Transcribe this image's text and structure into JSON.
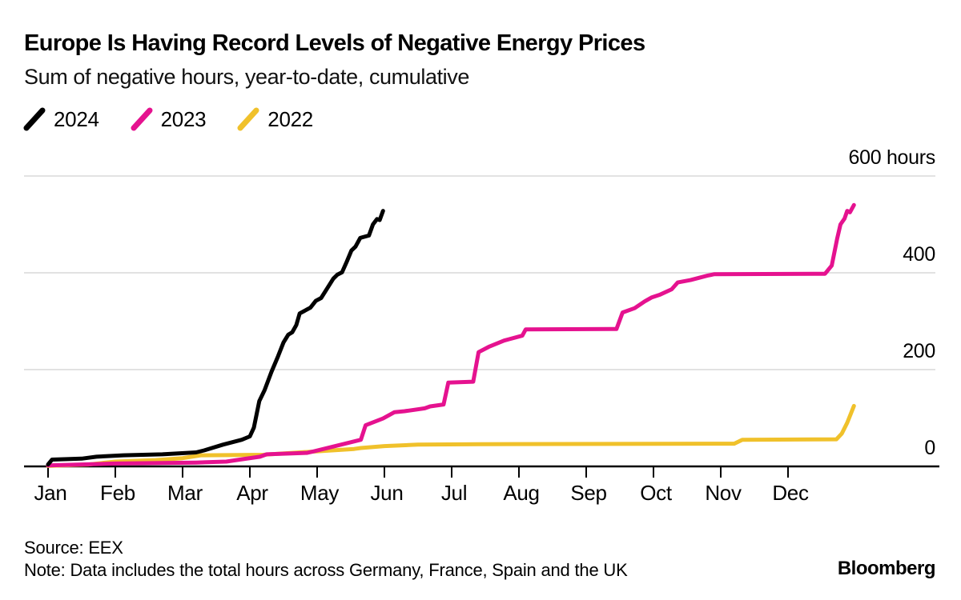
{
  "header": {
    "title": "Europe Is Having Record Levels of Negative Energy Prices",
    "subtitle": "Sum of negative hours, year-to-date, cumulative"
  },
  "legend": [
    {
      "label": "2024",
      "color": "#000000"
    },
    {
      "label": "2023",
      "color": "#e5128f"
    },
    {
      "label": "2022",
      "color": "#f0c12b"
    }
  ],
  "footer": {
    "source": "Source: EEX",
    "note": "Note: Data includes the total hours across Germany, France, Spain and the UK",
    "logo": "Bloomberg"
  },
  "colors": {
    "grid": "#d8d8d8",
    "axis": "#000000",
    "background": "#ffffff"
  },
  "chart_data": {
    "type": "line",
    "title": "Europe Is Having Record Levels of Negative Energy Prices",
    "subtitle": "Sum of negative hours, year-to-date, cumulative",
    "x_unit": "month of year (Jan 1 = 0)",
    "y_unit": "hours",
    "ylim": [
      0,
      600
    ],
    "grid": "horizontal",
    "legend_position": "top-left",
    "x_tick_labels": [
      "Jan",
      "Feb",
      "Mar",
      "Apr",
      "May",
      "Jun",
      "Jul",
      "Aug",
      "Sep",
      "Oct",
      "Nov",
      "Dec"
    ],
    "y_ticks": [
      {
        "value": 600,
        "label": "600 hours"
      },
      {
        "value": 400,
        "label": "400"
      },
      {
        "value": 200,
        "label": "200"
      },
      {
        "value": 0,
        "label": "0"
      }
    ],
    "series": [
      {
        "name": "2024",
        "color": "#000000",
        "points": [
          [
            0,
            4
          ],
          [
            0.06,
            14
          ],
          [
            0.5,
            16
          ],
          [
            0.72,
            20
          ],
          [
            1.12,
            23
          ],
          [
            1.7,
            25
          ],
          [
            2.2,
            29
          ],
          [
            2.32,
            33
          ],
          [
            2.6,
            45
          ],
          [
            2.88,
            55
          ],
          [
            3.0,
            62
          ],
          [
            3.06,
            80
          ],
          [
            3.14,
            135
          ],
          [
            3.22,
            158
          ],
          [
            3.32,
            195
          ],
          [
            3.42,
            228
          ],
          [
            3.5,
            256
          ],
          [
            3.57,
            272
          ],
          [
            3.63,
            277
          ],
          [
            3.69,
            292
          ],
          [
            3.74,
            316
          ],
          [
            3.82,
            322
          ],
          [
            3.9,
            328
          ],
          [
            3.98,
            342
          ],
          [
            4.06,
            348
          ],
          [
            4.15,
            368
          ],
          [
            4.24,
            388
          ],
          [
            4.3,
            396
          ],
          [
            4.37,
            401
          ],
          [
            4.44,
            423
          ],
          [
            4.51,
            446
          ],
          [
            4.57,
            454
          ],
          [
            4.64,
            472
          ],
          [
            4.77,
            477
          ],
          [
            4.83,
            500
          ],
          [
            4.89,
            511
          ],
          [
            4.93,
            509
          ],
          [
            4.98,
            528
          ]
        ]
      },
      {
        "name": "2023",
        "color": "#e5128f",
        "points": [
          [
            0,
            2
          ],
          [
            0.5,
            4
          ],
          [
            1.0,
            6
          ],
          [
            2.2,
            8
          ],
          [
            2.65,
            10
          ],
          [
            2.85,
            14
          ],
          [
            3.15,
            20
          ],
          [
            3.25,
            25
          ],
          [
            3.85,
            28
          ],
          [
            3.95,
            31
          ],
          [
            4.5,
            50
          ],
          [
            4.65,
            55
          ],
          [
            4.72,
            85
          ],
          [
            4.85,
            92
          ],
          [
            4.98,
            99
          ],
          [
            5.15,
            112
          ],
          [
            5.3,
            114
          ],
          [
            5.6,
            120
          ],
          [
            5.68,
            124
          ],
          [
            5.88,
            128
          ],
          [
            5.95,
            173
          ],
          [
            6.32,
            175
          ],
          [
            6.4,
            236
          ],
          [
            6.55,
            247
          ],
          [
            6.78,
            260
          ],
          [
            7.05,
            270
          ],
          [
            7.1,
            283
          ],
          [
            8.45,
            284
          ],
          [
            8.54,
            318
          ],
          [
            8.72,
            327
          ],
          [
            8.87,
            341
          ],
          [
            8.97,
            349
          ],
          [
            9.1,
            355
          ],
          [
            9.27,
            366
          ],
          [
            9.36,
            380
          ],
          [
            9.55,
            385
          ],
          [
            9.8,
            394
          ],
          [
            9.9,
            397
          ],
          [
            11.55,
            398
          ],
          [
            11.65,
            415
          ],
          [
            11.73,
            470
          ],
          [
            11.78,
            500
          ],
          [
            11.84,
            512
          ],
          [
            11.88,
            528
          ],
          [
            11.92,
            525
          ],
          [
            11.98,
            540
          ]
        ]
      },
      {
        "name": "2022",
        "color": "#f0c12b",
        "points": [
          [
            0,
            1
          ],
          [
            0.6,
            4
          ],
          [
            1.0,
            10
          ],
          [
            1.6,
            13
          ],
          [
            2.0,
            17
          ],
          [
            2.27,
            23
          ],
          [
            3.2,
            24
          ],
          [
            3.3,
            25
          ],
          [
            4.55,
            36
          ],
          [
            4.65,
            38
          ],
          [
            5.0,
            42
          ],
          [
            5.5,
            45
          ],
          [
            6.4,
            46
          ],
          [
            10.2,
            47
          ],
          [
            10.32,
            55
          ],
          [
            11.72,
            56
          ],
          [
            11.8,
            68
          ],
          [
            11.88,
            90
          ],
          [
            11.98,
            125
          ]
        ]
      }
    ]
  }
}
